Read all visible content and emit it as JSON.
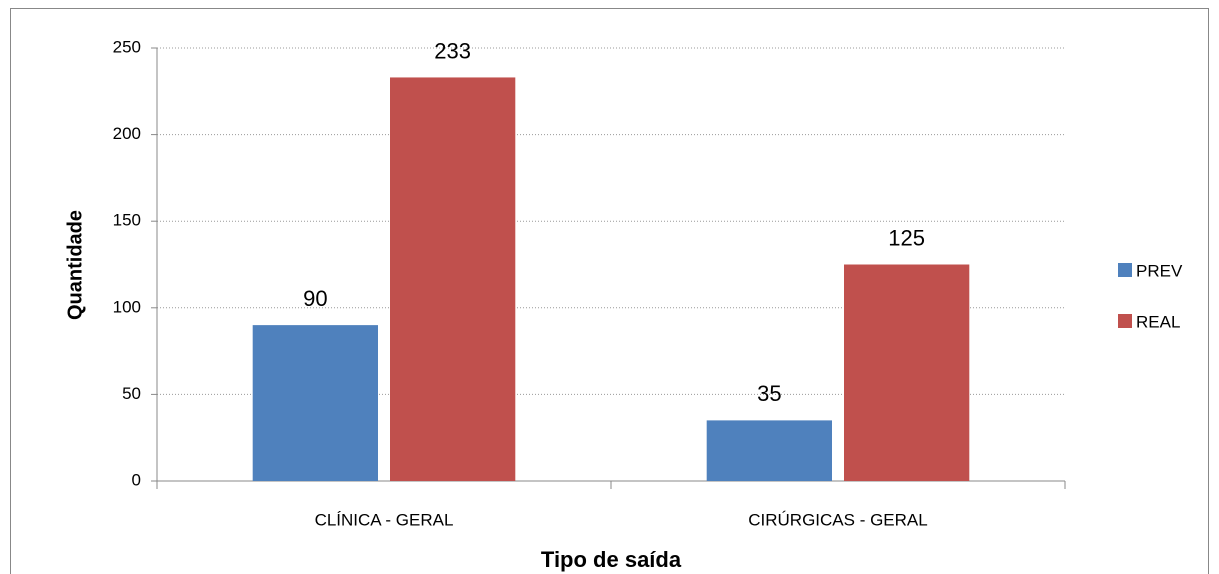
{
  "chart_data": {
    "type": "bar",
    "categories": [
      "CLÍNICA - GERAL",
      "CIRÚRGICAS - GERAL"
    ],
    "series": [
      {
        "name": "PREV",
        "color": "#4f81bd",
        "values": [
          90,
          35
        ]
      },
      {
        "name": "REAL",
        "color": "#c0504d",
        "values": [
          233,
          125
        ]
      }
    ],
    "xlabel": "Tipo de saída",
    "ylabel": "Quantidade",
    "ylim": [
      0,
      250
    ],
    "yticks": [
      0,
      50,
      100,
      150,
      200,
      250
    ],
    "grid": true,
    "legend": "right"
  }
}
